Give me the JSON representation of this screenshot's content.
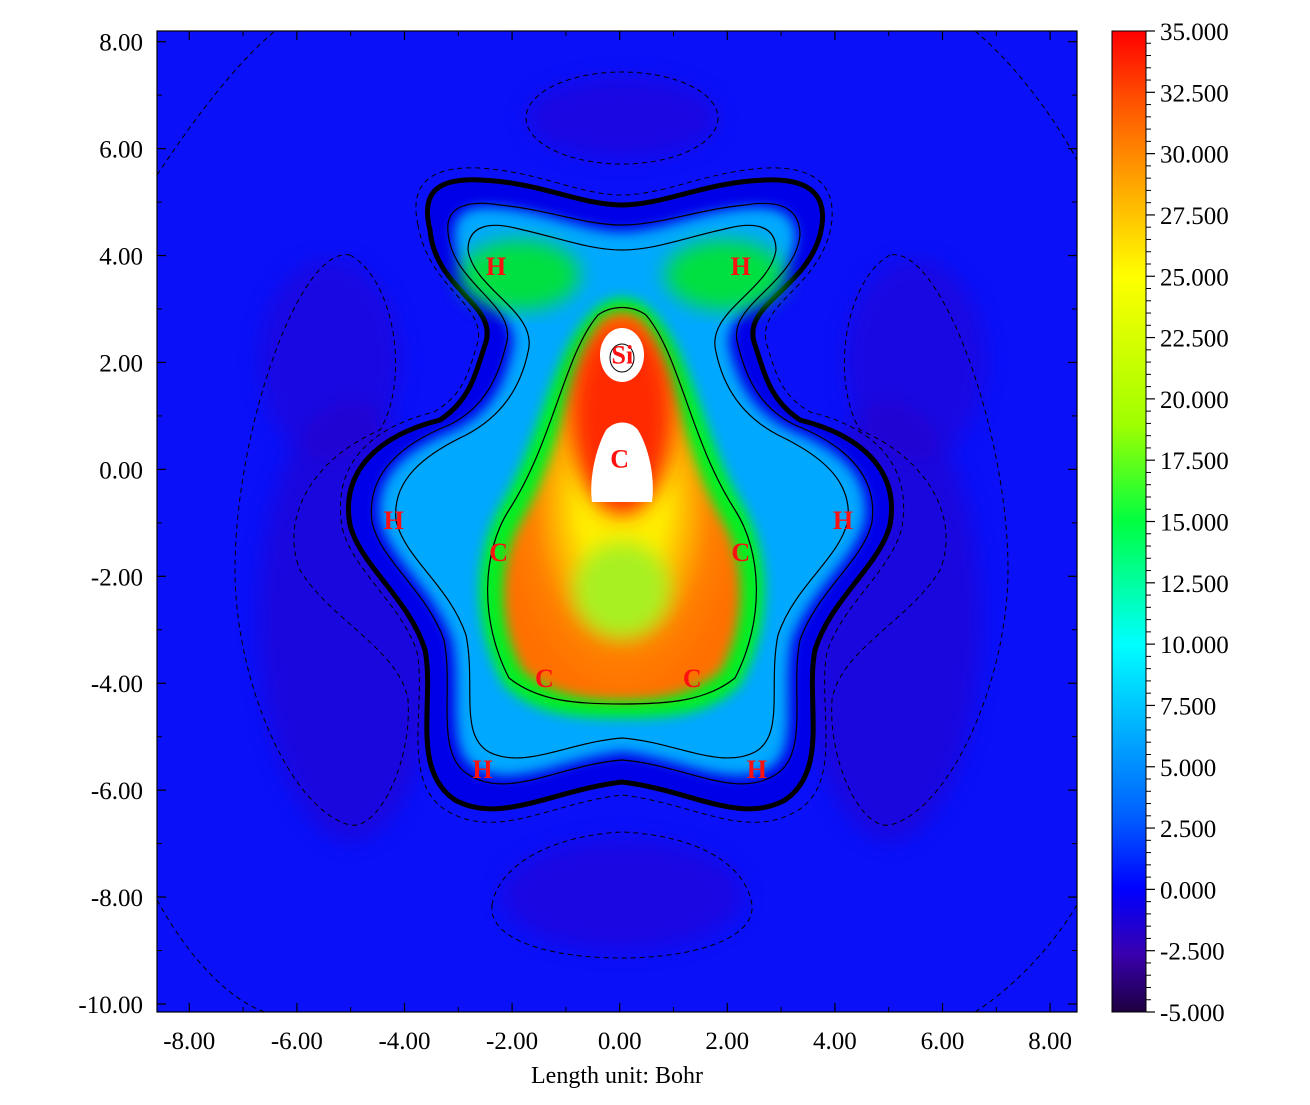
{
  "chart_data": {
    "type": "heatmap",
    "title": "",
    "xlabel": "Length unit: Bohr",
    "ylabel": "",
    "xlim": [
      -8.6,
      8.5
    ],
    "ylim": [
      -10.15,
      8.2
    ],
    "x_ticks": [
      "-8.00",
      "-6.00",
      "-4.00",
      "-2.00",
      "0.00",
      "2.00",
      "4.00",
      "6.00",
      "8.00"
    ],
    "x_tick_values": [
      -8,
      -6,
      -4,
      -2,
      0,
      2,
      4,
      6,
      8
    ],
    "y_ticks": [
      "8.00",
      "6.00",
      "4.00",
      "2.00",
      "0.00",
      "-2.00",
      "-4.00",
      "-6.00",
      "-8.00",
      "-10.00"
    ],
    "y_tick_values": [
      8,
      6,
      4,
      2,
      0,
      -2,
      -4,
      -6,
      -8,
      -10
    ],
    "colorbar": {
      "min": -5.0,
      "max": 35.0,
      "ticks": [
        "35.000",
        "32.500",
        "30.000",
        "27.500",
        "25.000",
        "22.500",
        "20.000",
        "17.500",
        "15.000",
        "12.500",
        "10.000",
        "7.500",
        "5.000",
        "2.500",
        "0.000",
        "-2.500",
        "-5.000"
      ],
      "tick_values": [
        35,
        32.5,
        30,
        27.5,
        25,
        22.5,
        20,
        17.5,
        15,
        12.5,
        10,
        7.5,
        5,
        2.5,
        0,
        -2.5,
        -5
      ],
      "colors": [
        "#1e0040",
        "#3800b0",
        "#0000ff",
        "#0060ff",
        "#00ffff",
        "#00ff40",
        "#a0ff00",
        "#ffff00",
        "#ffa000",
        "#ff5000",
        "#ff0000"
      ]
    },
    "atoms": [
      {
        "label": "Si",
        "x": 0.05,
        "y": 2.15
      },
      {
        "label": "C",
        "x": 0.0,
        "y": 0.2
      },
      {
        "label": "C",
        "x": -2.25,
        "y": -1.55
      },
      {
        "label": "C",
        "x": 2.25,
        "y": -1.55
      },
      {
        "label": "C",
        "x": -1.4,
        "y": -3.9
      },
      {
        "label": "C",
        "x": 1.35,
        "y": -3.9
      },
      {
        "label": "H",
        "x": -2.3,
        "y": 3.8
      },
      {
        "label": "H",
        "x": 2.25,
        "y": 3.8
      },
      {
        "label": "H",
        "x": -4.2,
        "y": -0.95
      },
      {
        "label": "H",
        "x": 4.15,
        "y": -0.95
      },
      {
        "label": "H",
        "x": -2.55,
        "y": -5.6
      },
      {
        "label": "H",
        "x": 2.55,
        "y": -5.6
      }
    ],
    "grid": false,
    "legend": "colorbar-right"
  }
}
